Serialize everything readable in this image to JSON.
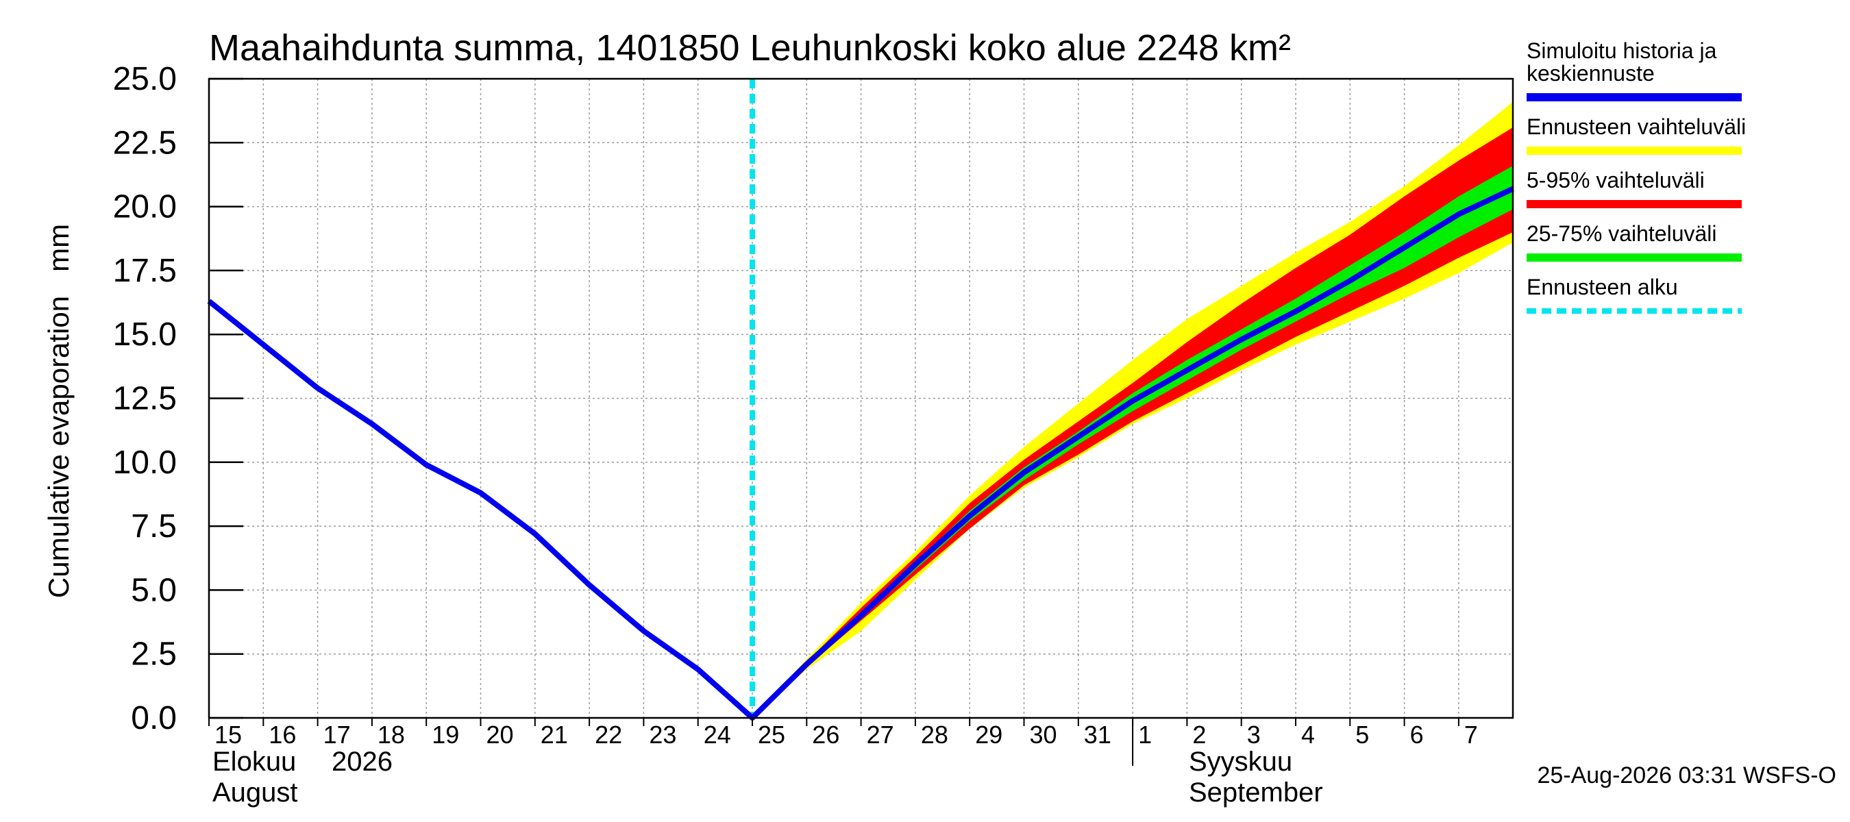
{
  "chart_data": {
    "type": "area",
    "title": "Maahaihdunta summa, 1401850 Leuhunkoski koko alue 2248 km²",
    "ylabel": "Cumulative evaporation   mm",
    "ylim": [
      0,
      25
    ],
    "yticks": [
      "0.0",
      "2.5",
      "5.0",
      "7.5",
      "10.0",
      "12.5",
      "15.0",
      "17.5",
      "20.0",
      "22.5",
      "25.0"
    ],
    "x_start": "15",
    "x_day_labels": [
      "15",
      "16",
      "17",
      "18",
      "19",
      "20",
      "21",
      "22",
      "23",
      "24",
      "25",
      "26",
      "27",
      "28",
      "29",
      "30",
      "31",
      "1",
      "2",
      "3",
      "4",
      "5",
      "6",
      "7"
    ],
    "month_labels": {
      "aug_fi": "Elokuu",
      "year": "2026",
      "aug_en": "August",
      "sep_fi": "Syyskuu",
      "sep_en": "September"
    },
    "forecast_start_x": 10,
    "series": [
      {
        "name": "Simuloitu historia ja keskiennuste",
        "color": "#0000ee",
        "x": [
          0,
          1,
          2,
          3,
          4,
          5,
          6,
          7,
          8,
          9,
          10,
          11,
          12,
          13,
          14,
          15,
          16,
          17,
          18,
          19,
          20,
          21,
          22,
          23,
          24
        ],
        "values": [
          16.3,
          14.6,
          12.9,
          11.5,
          9.9,
          8.8,
          7.2,
          5.2,
          3.4,
          1.9,
          0.0,
          2.1,
          4.0,
          6.0,
          7.9,
          9.6,
          11.0,
          12.4,
          13.6,
          14.8,
          15.9,
          17.1,
          18.4,
          19.7,
          20.7
        ]
      },
      {
        "name": "Ennusteen vaihteluväli",
        "color": "#ffff00",
        "x": [
          10,
          11,
          12,
          13,
          14,
          15,
          16,
          17,
          18,
          19,
          20,
          21,
          22,
          23,
          24
        ],
        "low": [
          0.0,
          1.9,
          3.4,
          5.4,
          7.4,
          9.0,
          10.2,
          11.5,
          12.5,
          13.6,
          14.6,
          15.5,
          16.4,
          17.4,
          18.6
        ],
        "high": [
          0.0,
          2.3,
          4.5,
          6.5,
          8.7,
          10.6,
          12.3,
          14.0,
          15.6,
          16.9,
          18.2,
          19.4,
          20.8,
          22.4,
          24.1
        ]
      },
      {
        "name": "5-95% vaihteluväli",
        "color": "#ff0000",
        "x": [
          10,
          11,
          12,
          13,
          14,
          15,
          16,
          17,
          18,
          19,
          20,
          21,
          22,
          23,
          24
        ],
        "low": [
          0.0,
          2.0,
          3.8,
          5.6,
          7.4,
          9.1,
          10.3,
          11.6,
          12.7,
          13.8,
          14.9,
          15.9,
          16.9,
          18.0,
          19.0
        ],
        "high": [
          0.0,
          2.2,
          4.3,
          6.3,
          8.4,
          10.1,
          11.6,
          13.1,
          14.7,
          16.2,
          17.6,
          18.9,
          20.4,
          21.8,
          23.1
        ]
      },
      {
        "name": "25-75% vaihteluväli",
        "color": "#00ee00",
        "x": [
          10,
          11,
          12,
          13,
          14,
          15,
          16,
          17,
          18,
          19,
          20,
          21,
          22,
          23,
          24
        ],
        "low": [
          0.0,
          2.1,
          3.9,
          5.8,
          7.7,
          9.3,
          10.7,
          12.0,
          13.2,
          14.4,
          15.5,
          16.6,
          17.6,
          18.8,
          19.9
        ],
        "high": [
          0.0,
          2.2,
          4.1,
          6.1,
          8.1,
          9.8,
          11.2,
          12.7,
          14.0,
          15.2,
          16.4,
          17.7,
          19.0,
          20.4,
          21.6
        ]
      },
      {
        "name": "Ennusteen alku",
        "color": "#00e5ee"
      }
    ],
    "legend": {
      "position": "right",
      "entries": [
        {
          "label_line1": "Simuloitu historia ja",
          "label_line2": "keskiennuste",
          "color": "#0000ee",
          "style": "solid"
        },
        {
          "label_line1": "Ennusteen vaihteluväli",
          "color": "#ffff00",
          "style": "solid"
        },
        {
          "label_line1": "5-95% vaihteluväli",
          "color": "#ff0000",
          "style": "solid"
        },
        {
          "label_line1": "25-75% vaihteluväli",
          "color": "#00ee00",
          "style": "solid"
        },
        {
          "label_line1": "Ennusteen alku",
          "color": "#00e5ee",
          "style": "dashed"
        }
      ]
    },
    "grid": true,
    "footer": "25-Aug-2026 03:31 WSFS-O"
  }
}
